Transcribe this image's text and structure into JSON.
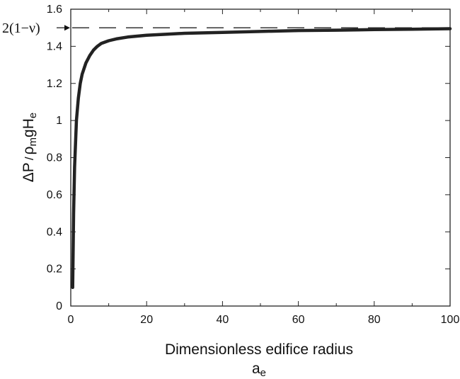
{
  "chart_data": {
    "type": "line",
    "title": "",
    "xlabel": "Dimensionless edifice radius",
    "xlabel_symbol": "a",
    "xlabel_symbol_sub": "e",
    "ylabel_parts": {
      "numerator": "ΔP",
      "slash": "/",
      "rho": "ρ",
      "rho_sub": "m",
      "g": "g",
      "H": "H",
      "H_sub": "e"
    },
    "xlim": [
      0,
      100
    ],
    "ylim": [
      0,
      1.6
    ],
    "x_ticks": [
      {
        "value": 0,
        "label": "0"
      },
      {
        "value": 20,
        "label": "20"
      },
      {
        "value": 40,
        "label": "40"
      },
      {
        "value": 60,
        "label": "60"
      },
      {
        "value": 80,
        "label": "80"
      },
      {
        "value": 100,
        "label": "100"
      }
    ],
    "y_ticks": [
      {
        "value": 0,
        "label": "0"
      },
      {
        "value": 0.2,
        "label": "0.2"
      },
      {
        "value": 0.4,
        "label": "0.4"
      },
      {
        "value": 0.6,
        "label": "0.6"
      },
      {
        "value": 0.8,
        "label": "0.8"
      },
      {
        "value": 1.0,
        "label": "1"
      },
      {
        "value": 1.2,
        "label": "1.2"
      },
      {
        "value": 1.4,
        "label": "1.4"
      },
      {
        "value": 1.6,
        "label": "1.6"
      }
    ],
    "grid": false,
    "series": [
      {
        "color": "#222222",
        "style": "solid",
        "x": [
          0.5,
          0.75,
          1,
          1.5,
          2,
          2.5,
          3,
          4,
          5,
          6,
          7,
          8,
          10,
          12,
          15,
          20,
          25,
          30,
          40,
          50,
          60,
          70,
          80,
          90,
          100
        ],
        "y": [
          0.1,
          0.5,
          0.75,
          1.0,
          1.12,
          1.2,
          1.25,
          1.31,
          1.35,
          1.38,
          1.4,
          1.415,
          1.43,
          1.44,
          1.45,
          1.46,
          1.465,
          1.47,
          1.475,
          1.48,
          1.485,
          1.487,
          1.49,
          1.492,
          1.495
        ]
      }
    ],
    "reference_line": {
      "y": 1.5,
      "style": "dashed",
      "color": "#333333",
      "label": "2(1−ν)"
    }
  }
}
